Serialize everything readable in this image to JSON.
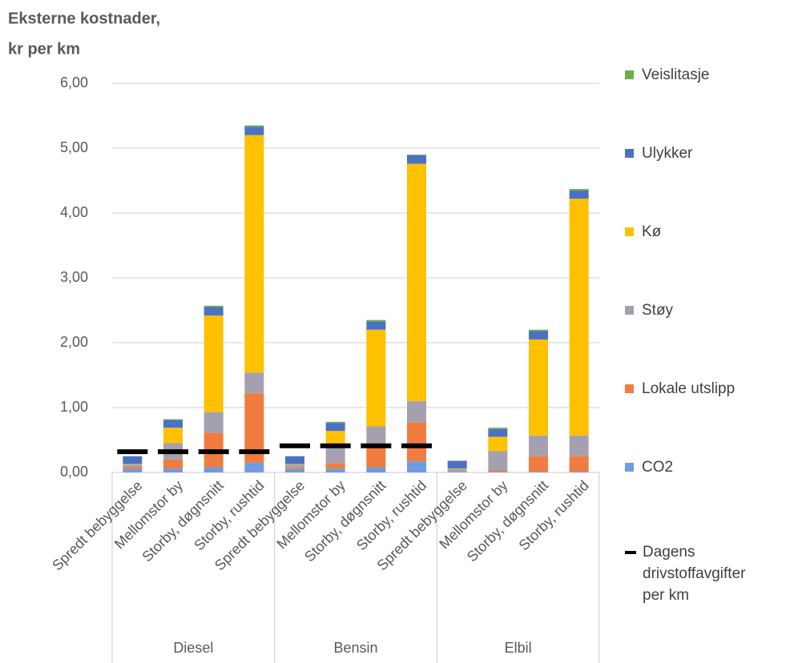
{
  "chart_data": {
    "type": "stacked_bar",
    "title": [
      "Eksterne kostnader,",
      "kr per km"
    ],
    "groups": [
      "Diesel",
      "Bensin",
      "Elbil"
    ],
    "categories": [
      "Spredt bebyggelse",
      "Mellomstor by",
      "Storby, døgnsnitt",
      "Storby, rushtid",
      "Spredt bebyggelse",
      "Mellomstor by",
      "Storby, døgnsnitt",
      "Storby, rushtid",
      "Spredt bebyggelse",
      "Mellomstor by",
      "Storby, døgnsnitt",
      "Storby, rushtid"
    ],
    "series": [
      {
        "name": "CO2",
        "color": "#6f9be0",
        "values": [
          0.05,
          0.06,
          0.08,
          0.15,
          0.05,
          0.06,
          0.08,
          0.17,
          0.01,
          0.01,
          0.01,
          0.01
        ]
      },
      {
        "name": "Lokale utslipp",
        "color": "#f07c3f",
        "values": [
          0.03,
          0.14,
          0.53,
          1.07,
          0.02,
          0.08,
          0.3,
          0.6,
          0,
          0.02,
          0.24,
          0.24
        ]
      },
      {
        "name": "Støy",
        "color": "#a5a0b0",
        "values": [
          0.04,
          0.25,
          0.32,
          0.32,
          0.05,
          0.3,
          0.33,
          0.33,
          0.04,
          0.3,
          0.32,
          0.32
        ]
      },
      {
        "name": "Kø",
        "color": "#ffc000",
        "values": [
          0.01,
          0.24,
          1.49,
          3.66,
          0.01,
          0.2,
          1.49,
          3.66,
          0.01,
          0.22,
          1.48,
          3.65
        ]
      },
      {
        "name": "Ulykker",
        "color": "#4a72c4",
        "values": [
          0.12,
          0.12,
          0.13,
          0.13,
          0.12,
          0.12,
          0.13,
          0.13,
          0.12,
          0.12,
          0.13,
          0.13
        ]
      },
      {
        "name": "Veislitasje",
        "color": "#70ad47",
        "values": [
          0,
          0.01,
          0.02,
          0.02,
          0,
          0.02,
          0.02,
          0.01,
          0,
          0.02,
          0.02,
          0.02
        ]
      }
    ],
    "line_series": {
      "name": "Dagens drivstoffavgifter per km",
      "color": "#000000",
      "values": [
        0.32,
        0.32,
        0.32,
        0.32,
        0.41,
        0.41,
        0.41,
        0.41,
        null,
        null,
        null,
        null
      ]
    },
    "ylim": [
      0,
      6
    ],
    "yticks": [
      {
        "value": 0,
        "label": "0,00"
      },
      {
        "value": 1,
        "label": "1,00"
      },
      {
        "value": 2,
        "label": "2,00"
      },
      {
        "value": 3,
        "label": "3,00"
      },
      {
        "value": 4,
        "label": "4,00"
      },
      {
        "value": 5,
        "label": "5,00"
      },
      {
        "value": 6,
        "label": "6,00"
      }
    ],
    "grid": true
  }
}
